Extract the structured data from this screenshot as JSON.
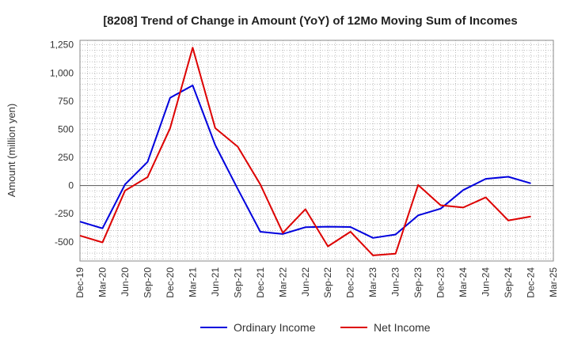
{
  "chart_data": {
    "type": "line",
    "title": "[8208]  Trend of Change in Amount (YoY) of 12Mo Moving Sum of Incomes",
    "xlabel": "",
    "ylabel": "Amount (million yen)",
    "categories": [
      "Dec-19",
      "Mar-20",
      "Jun-20",
      "Sep-20",
      "Dec-20",
      "Mar-21",
      "Jun-21",
      "Sep-21",
      "Dec-21",
      "Mar-22",
      "Jun-22",
      "Sep-22",
      "Dec-22",
      "Mar-23",
      "Jun-23",
      "Sep-23",
      "Dec-23",
      "Mar-24",
      "Jun-24",
      "Sep-24",
      "Dec-24",
      "Mar-25"
    ],
    "ylim": [
      -670,
      1290
    ],
    "yticks": [
      -500,
      -250,
      0,
      250,
      500,
      750,
      1000,
      1250
    ],
    "ytick_labels": [
      "-500",
      "-250",
      "0",
      "250",
      "500",
      "750",
      "1,000",
      "1,250"
    ],
    "grid": true,
    "legend_position": "bottom",
    "series": [
      {
        "name": "Ordinary Income",
        "color": "#0000dd",
        "values": [
          -320,
          -380,
          10,
          210,
          780,
          890,
          360,
          -30,
          -410,
          -430,
          -370,
          -365,
          -368,
          -465,
          -435,
          -265,
          -205,
          -40,
          60,
          78,
          20,
          null
        ]
      },
      {
        "name": "Net Income",
        "color": "#dd0000",
        "values": [
          -445,
          -505,
          -45,
          75,
          510,
          1225,
          510,
          345,
          10,
          -420,
          -210,
          -540,
          -410,
          -620,
          -605,
          5,
          -175,
          -195,
          -105,
          -310,
          -275,
          null
        ]
      }
    ]
  }
}
